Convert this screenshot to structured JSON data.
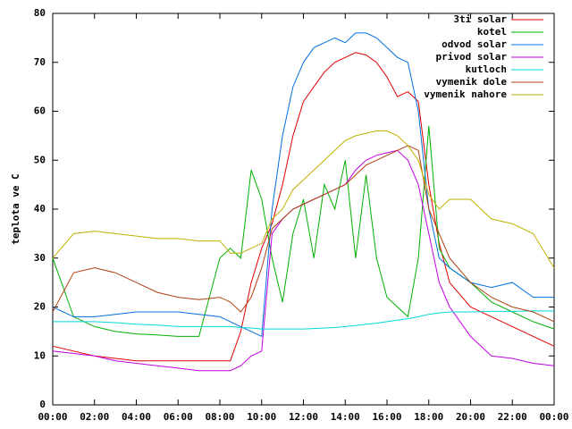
{
  "chart_data": {
    "type": "line",
    "ylabel": "teplota ve C",
    "x": [
      0,
      1,
      2,
      3,
      4,
      5,
      6,
      7,
      8,
      8.5,
      9,
      9.5,
      10,
      10.5,
      11,
      11.5,
      12,
      12.5,
      13,
      13.5,
      14,
      14.5,
      15,
      15.5,
      16,
      16.5,
      17,
      17.5,
      18,
      18.5,
      19,
      20,
      21,
      22,
      23,
      24
    ],
    "xlim": [
      0,
      24
    ],
    "xticks": [
      {
        "value": 0,
        "label": "00:00"
      },
      {
        "value": 2,
        "label": "02:00"
      },
      {
        "value": 4,
        "label": "04:00"
      },
      {
        "value": 6,
        "label": "06:00"
      },
      {
        "value": 8,
        "label": "08:00"
      },
      {
        "value": 10,
        "label": "10:00"
      },
      {
        "value": 12,
        "label": "12:00"
      },
      {
        "value": 14,
        "label": "14:00"
      },
      {
        "value": 16,
        "label": "16:00"
      },
      {
        "value": 18,
        "label": "18:00"
      },
      {
        "value": 20,
        "label": "20:00"
      },
      {
        "value": 22,
        "label": "22:00"
      },
      {
        "value": 24,
        "label": "00:00"
      }
    ],
    "ylim": [
      0,
      80
    ],
    "yticks": [
      0,
      10,
      20,
      30,
      40,
      50,
      60,
      70,
      80
    ],
    "legend": "top-right",
    "series": [
      {
        "name": "3ti solar",
        "color": "#e00000",
        "values": [
          12,
          11,
          10,
          9.5,
          9,
          9,
          9,
          9,
          9,
          9,
          15,
          25,
          32,
          37,
          45,
          55,
          62,
          65,
          68,
          70,
          71,
          72,
          71.5,
          70,
          67,
          63,
          64,
          62,
          45,
          33,
          25,
          20,
          18,
          16,
          14,
          12
        ]
      },
      {
        "name": "kotel",
        "color": "#00b000",
        "values": [
          30,
          18,
          16,
          15,
          14.5,
          14.3,
          14,
          14,
          30,
          32,
          30,
          48,
          42,
          30,
          21,
          35,
          42,
          30,
          45,
          40,
          50,
          30,
          47,
          30,
          22,
          20,
          18,
          30,
          57,
          32,
          28,
          25,
          21,
          19,
          17,
          15.5
        ]
      },
      {
        "name": "odvod solar",
        "color": "#0070e0",
        "values": [
          20,
          18,
          18,
          18.5,
          19,
          19,
          19,
          18.5,
          18,
          17,
          16,
          15,
          14,
          40,
          55,
          65,
          70,
          73,
          74,
          75,
          74,
          76,
          76,
          75,
          73,
          71,
          70,
          60,
          40,
          30,
          28,
          25,
          24,
          25,
          22,
          22
        ]
      },
      {
        "name": "privod solar",
        "color": "#c000e0",
        "values": [
          11,
          10.5,
          10,
          9,
          8.5,
          8,
          7.5,
          7,
          7,
          7,
          8,
          10,
          11,
          35,
          38,
          40,
          41,
          42,
          43,
          44,
          45,
          48,
          50,
          51,
          51.5,
          52,
          50,
          45,
          35,
          25,
          20,
          14,
          10,
          9.5,
          8.5,
          8
        ]
      },
      {
        "name": "kutloch",
        "color": "#00d8d8",
        "values": [
          17,
          17,
          17,
          16.8,
          16.5,
          16.3,
          16,
          16,
          16,
          16,
          15.8,
          15.7,
          15.5,
          15.5,
          15.5,
          15.5,
          15.5,
          15.6,
          15.7,
          15.8,
          16,
          16.2,
          16.5,
          16.7,
          17,
          17.3,
          17.6,
          18,
          18.5,
          18.8,
          19,
          19,
          19.1,
          19.1,
          19.2,
          19.2
        ]
      },
      {
        "name": "vymenik dole",
        "color": "#b04010",
        "values": [
          19,
          27,
          28,
          27,
          25,
          23,
          22,
          21.5,
          22,
          21,
          19,
          22,
          28,
          36,
          38,
          40,
          41,
          42,
          43,
          44,
          45,
          47,
          49,
          50,
          51,
          52,
          53,
          52,
          40,
          35,
          30,
          25,
          22,
          20,
          19,
          17
        ]
      },
      {
        "name": "vymenik nahore",
        "color": "#c0b000",
        "values": [
          30,
          35,
          35.5,
          35,
          34.5,
          34,
          34,
          33.5,
          33.5,
          31,
          31,
          32,
          33,
          38,
          40,
          44,
          46,
          48,
          50,
          52,
          54,
          55,
          55.5,
          56,
          56,
          55,
          53,
          50,
          43,
          40,
          42,
          42,
          38,
          37,
          35,
          28
        ]
      }
    ]
  }
}
